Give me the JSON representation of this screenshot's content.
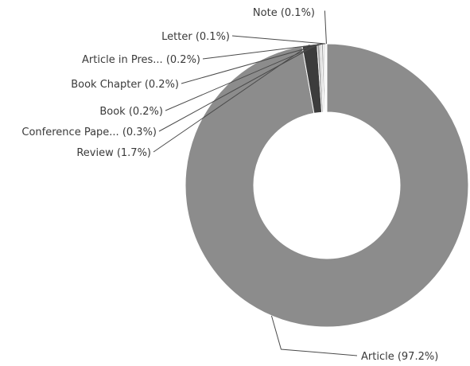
{
  "chart_data": {
    "type": "pie",
    "donut": true,
    "series": [
      {
        "values": [
          97.2,
          1.7,
          0.3,
          0.2,
          0.2,
          0.2,
          0.1,
          0.1
        ],
        "categories": [
          "Article",
          "Review",
          "Conference Pape...",
          "Book",
          "Book Chapter",
          "Article in Pres...",
          "Letter",
          "Note"
        ],
        "labels": [
          "Article (97.2%)",
          "Review (1.7%)",
          "Conference Pape... (0.3%)",
          "Book (0.2%)",
          "Book Chapter (0.2%)",
          "Article in Pres... (0.2%)",
          "Letter (0.1%)",
          "Note (0.1%)"
        ],
        "colors": [
          "#8c8c8c",
          "#3c3c3c",
          "#a0a0a0",
          "#c8c8c8",
          "#9a9a9a",
          "#d6d6d6",
          "#707070",
          "#e6e6e6"
        ]
      }
    ],
    "title": "",
    "legend": "none"
  }
}
